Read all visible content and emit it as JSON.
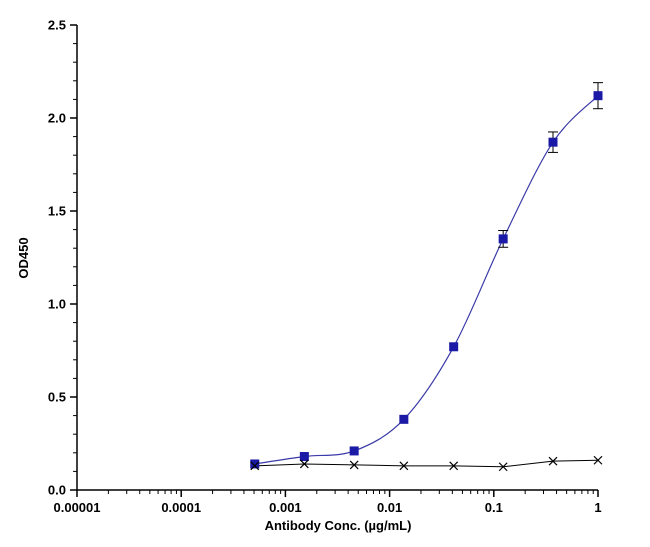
{
  "chart_data": {
    "type": "scatter",
    "title": "",
    "xlabel": "Antibody Conc. (µg/mL)",
    "ylabel": "OD450",
    "xscale": "log",
    "xlim": [
      1e-05,
      1
    ],
    "ylim": [
      0,
      2.5
    ],
    "x_ticks": [
      1e-05,
      0.0001,
      0.001,
      0.01,
      0.1,
      1
    ],
    "x_tick_labels": [
      "0.00001",
      "0.0001",
      "0.001",
      "0.01",
      "0.1",
      "1"
    ],
    "y_ticks": [
      0,
      0.5,
      1.0,
      1.5,
      2.0,
      2.5
    ],
    "y_tick_labels": [
      "0.0",
      "0.5",
      "1.0",
      "1.5",
      "2.0",
      "2.5"
    ],
    "grid": false,
    "legend": "none",
    "series": [
      {
        "marker": "square",
        "color": "#1a1aa6",
        "line_color": "#3a3aa8",
        "fit": "4PL sigmoid",
        "x": [
          0.000508,
          0.00152,
          0.00457,
          0.0137,
          0.0412,
          0.123,
          0.37,
          1.0
        ],
        "y": [
          0.14,
          0.18,
          0.21,
          0.38,
          0.77,
          1.35,
          1.87,
          2.12
        ],
        "y_err": [
          0.005,
          0.01,
          0.01,
          0.01,
          0.01,
          0.045,
          0.055,
          0.07
        ]
      },
      {
        "marker": "x",
        "color": "#000000",
        "line_color": "#000000",
        "fit": "connected",
        "x": [
          0.000508,
          0.00152,
          0.00457,
          0.0137,
          0.0412,
          0.123,
          0.37,
          1.0
        ],
        "y": [
          0.13,
          0.14,
          0.135,
          0.13,
          0.13,
          0.125,
          0.155,
          0.16
        ]
      }
    ]
  }
}
